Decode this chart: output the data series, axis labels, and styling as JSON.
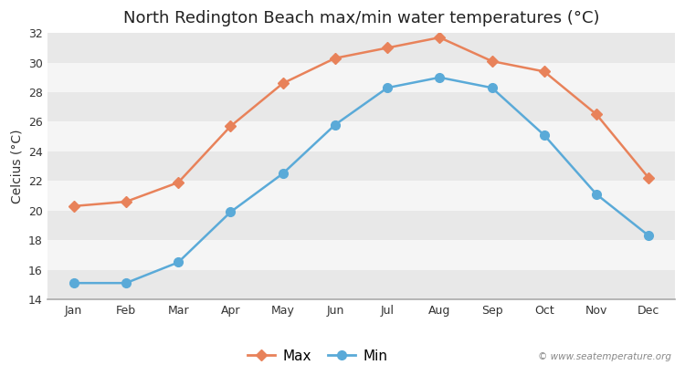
{
  "title": "North Redington Beach max/min water temperatures (°C)",
  "ylabel": "Celcius (°C)",
  "months": [
    "Jan",
    "Feb",
    "Mar",
    "Apr",
    "May",
    "Jun",
    "Jul",
    "Aug",
    "Sep",
    "Oct",
    "Nov",
    "Dec"
  ],
  "max_temps": [
    20.3,
    20.6,
    21.9,
    25.7,
    28.6,
    30.3,
    31.0,
    31.7,
    30.1,
    29.4,
    26.5,
    22.2
  ],
  "min_temps": [
    15.1,
    15.1,
    16.5,
    19.9,
    22.5,
    25.8,
    28.3,
    29.0,
    28.3,
    25.1,
    21.1,
    18.3
  ],
  "max_color": "#e8825a",
  "min_color": "#5aaad8",
  "ylim": [
    14,
    32
  ],
  "yticks": [
    14,
    16,
    18,
    20,
    22,
    24,
    26,
    28,
    30,
    32
  ],
  "figure_bg": "#ffffff",
  "plot_bg": "#ffffff",
  "band_colors": [
    "#e8e8e8",
    "#f5f5f5"
  ],
  "grid_line_color": "#cccccc",
  "watermark": "© www.seatemperature.org",
  "title_fontsize": 13,
  "label_fontsize": 10,
  "tick_fontsize": 9,
  "marker_size": 6
}
